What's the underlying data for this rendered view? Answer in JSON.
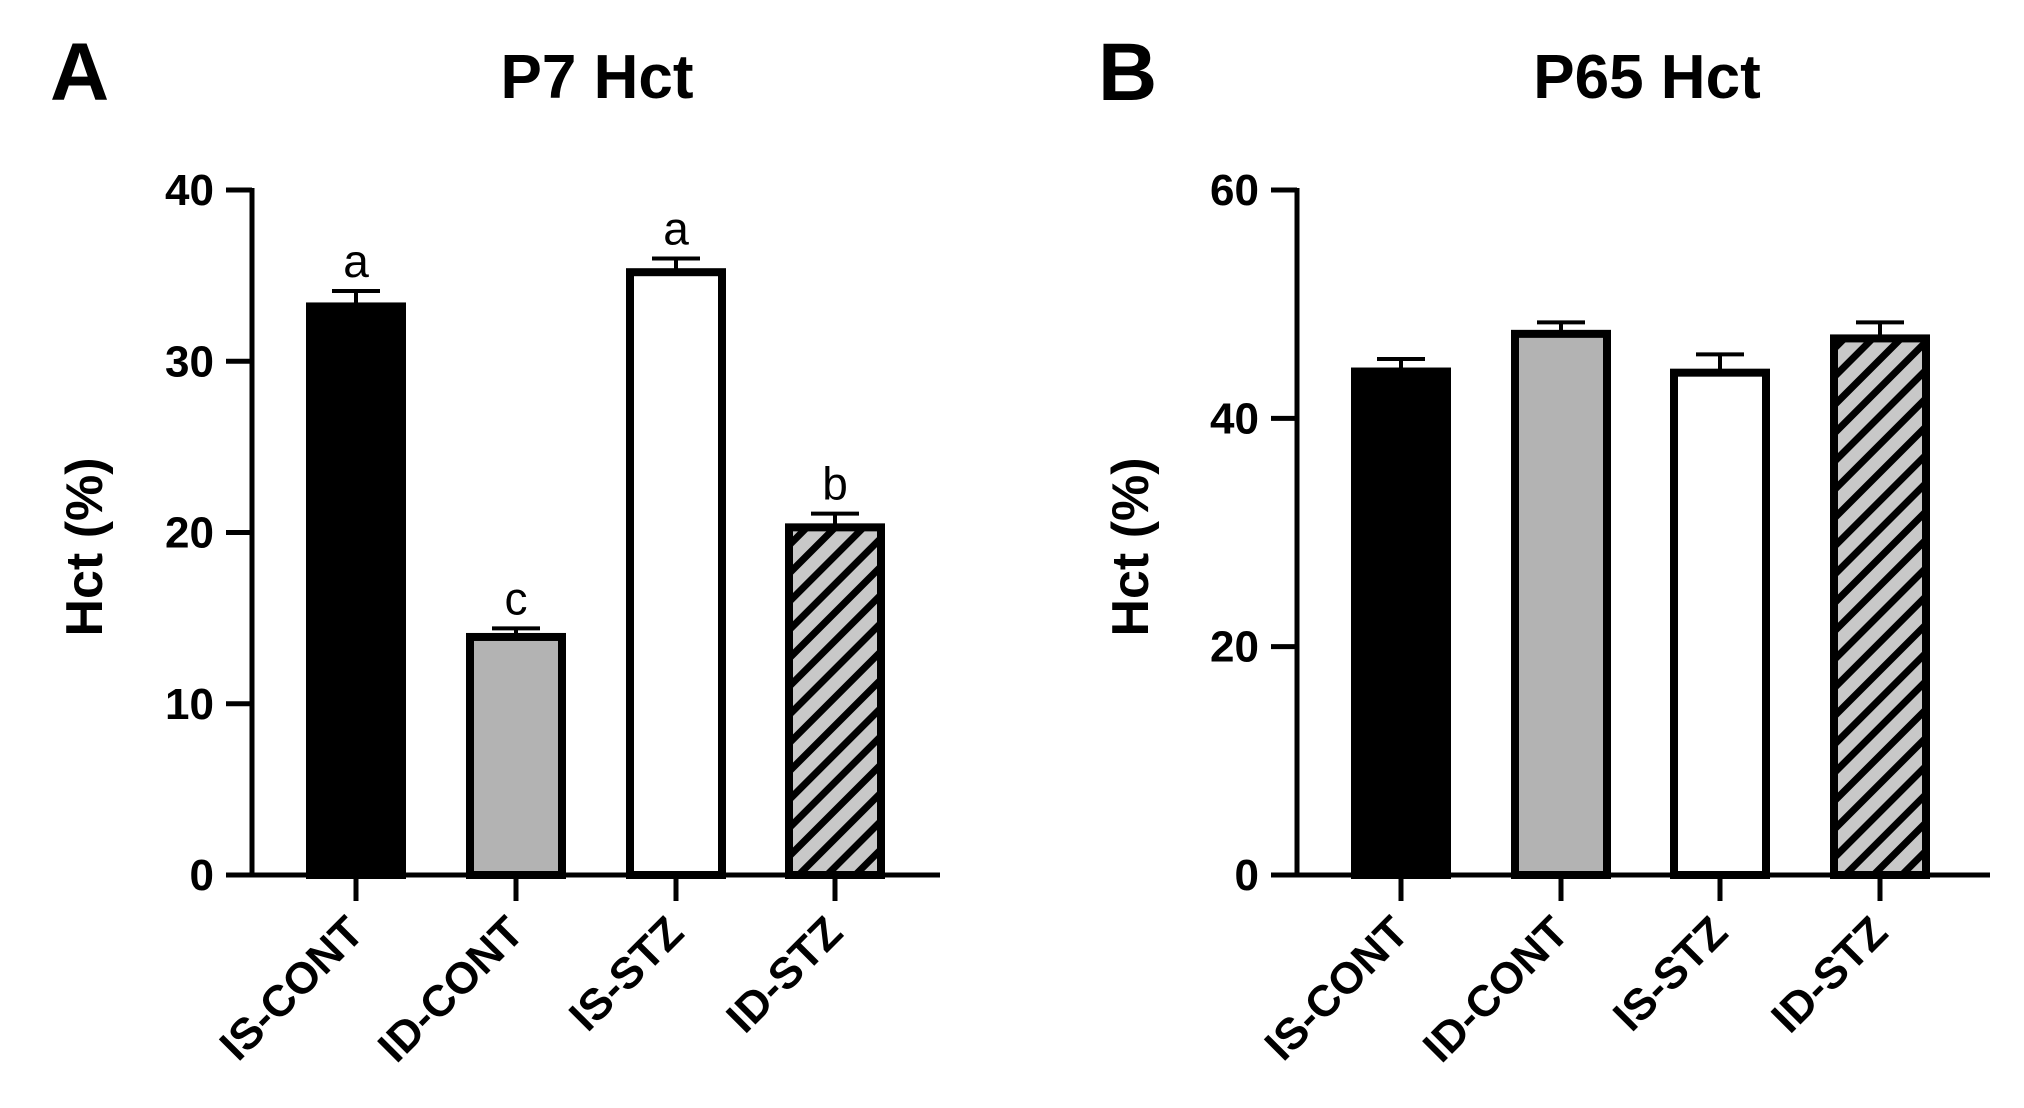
{
  "chart_data": [
    {
      "panel": "A",
      "type": "bar",
      "title": "P7 Hct",
      "xlabel": "",
      "ylabel": "Hct (%)",
      "ylim": [
        0,
        40
      ],
      "yticks": [
        0,
        10,
        20,
        30,
        40
      ],
      "categories": [
        "IS-CONT",
        "ID-CONT",
        "IS-STZ",
        "ID-STZ"
      ],
      "values": [
        33.2,
        13.9,
        35.2,
        20.3
      ],
      "errors": [
        0.9,
        0.5,
        0.8,
        0.8
      ],
      "annotations": [
        "a",
        "c",
        "a",
        "b"
      ],
      "grid": false,
      "legend": "none"
    },
    {
      "panel": "B",
      "type": "bar",
      "title": "P65 Hct",
      "xlabel": "",
      "ylabel": "Hct (%)",
      "ylim": [
        0,
        60
      ],
      "yticks": [
        0,
        20,
        40,
        60
      ],
      "categories": [
        "IS-CONT",
        "ID-CONT",
        "IS-STZ",
        "ID-STZ"
      ],
      "values": [
        44.1,
        47.4,
        44.0,
        47.0
      ],
      "errors": [
        1.1,
        1.0,
        1.6,
        1.4
      ],
      "annotations": [
        "",
        "",
        "",
        ""
      ],
      "grid": false,
      "legend": "none"
    }
  ],
  "styles": [
    {
      "fill": "#000000",
      "pattern": "solid"
    },
    {
      "fill": "#b3b3b3",
      "pattern": "solid"
    },
    {
      "fill": "#ffffff",
      "pattern": "solid"
    },
    {
      "fill": "#c8c8c8",
      "pattern": "diagonal-hatch"
    }
  ],
  "colors": {
    "axis": "#000000",
    "bar_border": "#000000"
  }
}
